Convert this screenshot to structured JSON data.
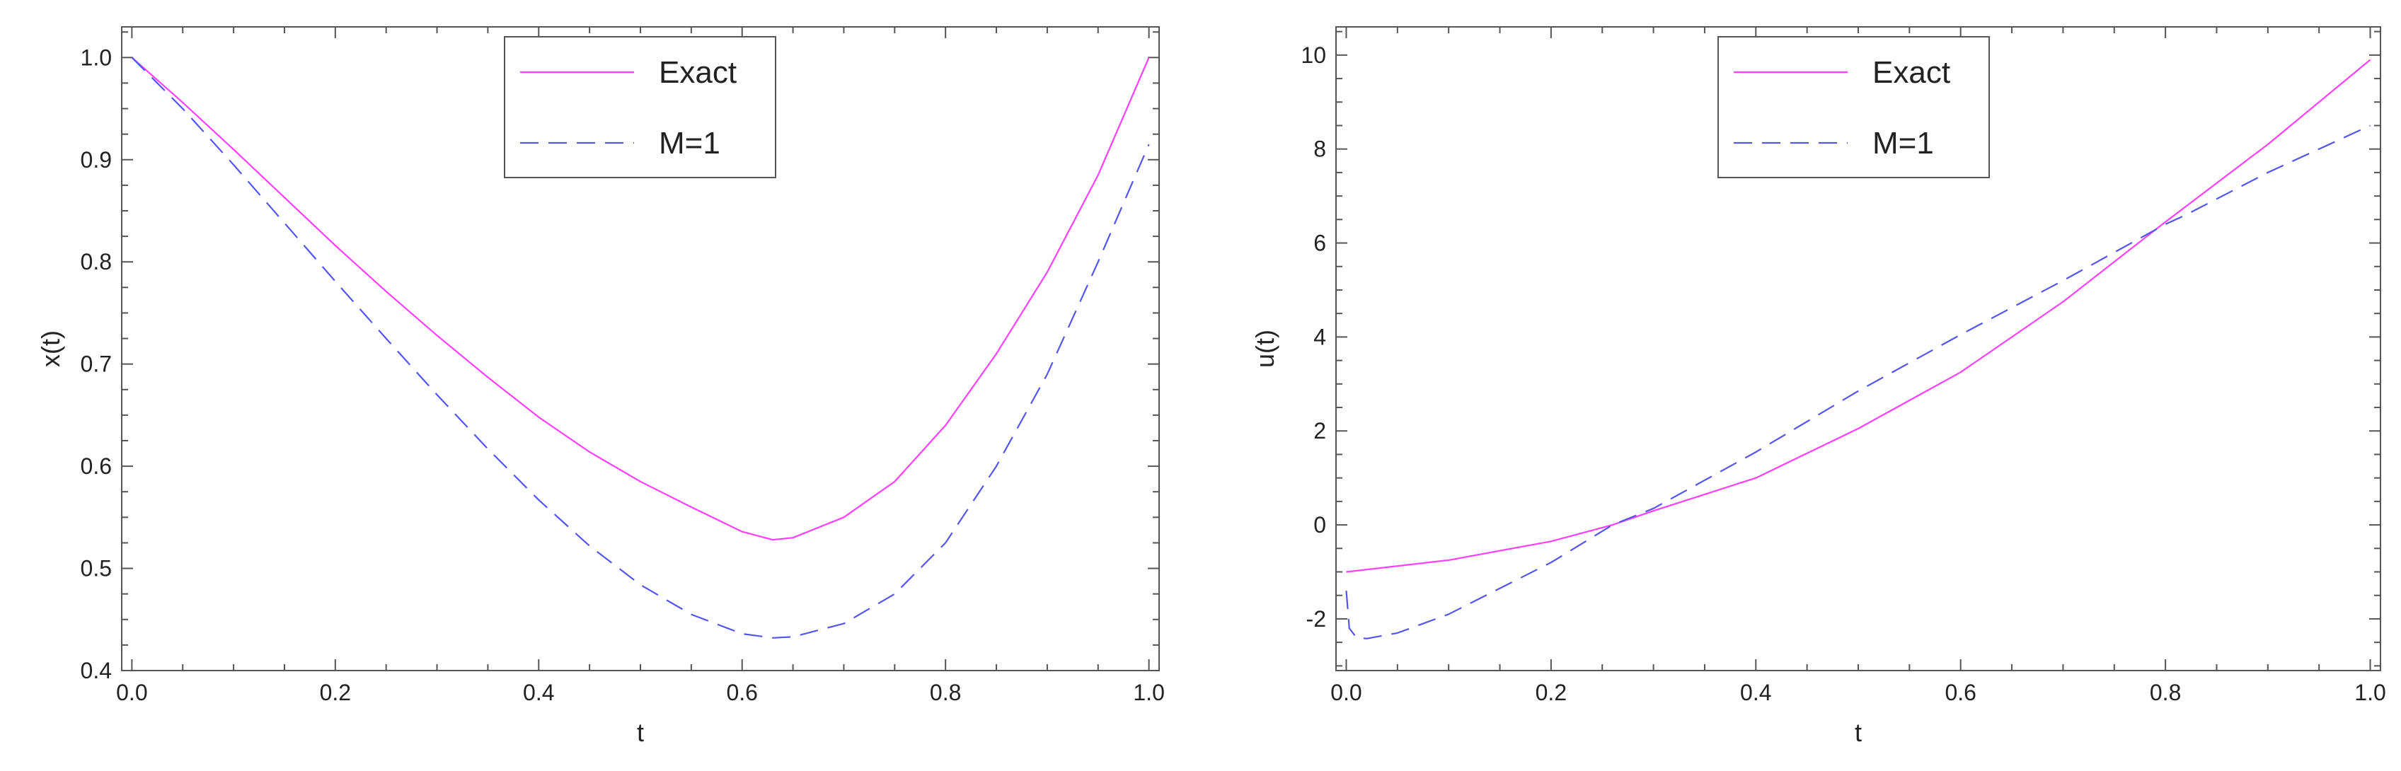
{
  "chart_data": [
    {
      "type": "line",
      "xlabel": "t",
      "ylabel": "x(t)",
      "xlim": [
        -0.01,
        1.01
      ],
      "ylim": [
        0.4,
        1.03
      ],
      "xticks": [
        "0.0",
        "0.2",
        "0.4",
        "0.6",
        "0.8",
        "1.0"
      ],
      "yticks": [
        "0.4",
        "0.5",
        "0.6",
        "0.7",
        "0.8",
        "0.9",
        "1.0"
      ],
      "grid": false,
      "legend_position": "top-center",
      "series": [
        {
          "name": "Exact",
          "style": "solid",
          "color": "#ff40ff",
          "x": [
            0.0,
            0.05,
            0.1,
            0.15,
            0.2,
            0.25,
            0.3,
            0.35,
            0.4,
            0.45,
            0.5,
            0.55,
            0.6,
            0.63,
            0.65,
            0.7,
            0.75,
            0.8,
            0.85,
            0.9,
            0.95,
            1.0
          ],
          "y": [
            1.0,
            0.956,
            0.91,
            0.863,
            0.816,
            0.771,
            0.728,
            0.687,
            0.648,
            0.614,
            0.585,
            0.56,
            0.536,
            0.528,
            0.53,
            0.55,
            0.585,
            0.64,
            0.71,
            0.79,
            0.885,
            1.0
          ]
        },
        {
          "name": "M=1",
          "style": "dashed",
          "color": "#5555ee",
          "x": [
            0.0,
            0.05,
            0.1,
            0.15,
            0.2,
            0.25,
            0.3,
            0.35,
            0.4,
            0.45,
            0.5,
            0.55,
            0.6,
            0.63,
            0.65,
            0.7,
            0.75,
            0.8,
            0.85,
            0.9,
            0.95,
            1.0
          ],
          "y": [
            1.0,
            0.95,
            0.895,
            0.838,
            0.781,
            0.725,
            0.67,
            0.617,
            0.567,
            0.522,
            0.484,
            0.455,
            0.436,
            0.432,
            0.433,
            0.446,
            0.475,
            0.525,
            0.6,
            0.69,
            0.8,
            0.915
          ]
        }
      ]
    },
    {
      "type": "line",
      "xlabel": "t",
      "ylabel": "u(t)",
      "xlim": [
        -0.01,
        1.01
      ],
      "ylim": [
        -3.1,
        10.6
      ],
      "xticks": [
        "0.0",
        "0.2",
        "0.4",
        "0.6",
        "0.8",
        "1.0"
      ],
      "yticks": [
        "-2",
        "0",
        "2",
        "4",
        "6",
        "8",
        "10"
      ],
      "grid": false,
      "legend_position": "top-center",
      "series": [
        {
          "name": "Exact",
          "style": "solid",
          "color": "#ff40ff",
          "x": [
            0.0,
            0.1,
            0.2,
            0.26,
            0.3,
            0.4,
            0.5,
            0.6,
            0.7,
            0.8,
            0.9,
            1.0
          ],
          "y": [
            -1.0,
            -0.75,
            -0.35,
            0.0,
            0.3,
            1.0,
            2.05,
            3.25,
            4.75,
            6.45,
            8.1,
            9.9
          ]
        },
        {
          "name": "M=1",
          "style": "dashed",
          "color": "#5555ee",
          "x": [
            0.0,
            0.003,
            0.01,
            0.02,
            0.05,
            0.1,
            0.2,
            0.26,
            0.3,
            0.4,
            0.5,
            0.6,
            0.7,
            0.8,
            0.82,
            0.9,
            1.0
          ],
          "y": [
            -1.4,
            -2.2,
            -2.4,
            -2.42,
            -2.3,
            -1.9,
            -0.8,
            0.0,
            0.35,
            1.55,
            2.85,
            4.05,
            5.2,
            6.4,
            6.6,
            7.5,
            8.5
          ]
        }
      ]
    }
  ]
}
